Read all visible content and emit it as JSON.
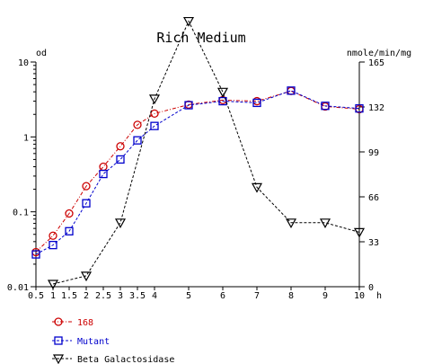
{
  "chart_data": {
    "type": "line",
    "title": "Rich Medium",
    "x_unit": "h",
    "y_left_unit": "od",
    "y_right_unit": "nmole/min/mg",
    "x_tick_labels": [
      "0.5",
      "1",
      "1.5",
      "2",
      "2.5",
      "3",
      "3.5",
      "4",
      "5",
      "6",
      "7",
      "8",
      "9",
      "10"
    ],
    "y_left_scale": "log",
    "y_left_range": [
      0.01,
      10
    ],
    "y_left_ticks": [
      "0.01",
      "0.1",
      "1",
      "10"
    ],
    "y_right_range": [
      0,
      165
    ],
    "y_right_ticks": [
      "0",
      "33",
      "66",
      "99",
      "132",
      "165"
    ],
    "grid": false,
    "legend_position": "bottom-left",
    "series": [
      {
        "name": "168",
        "color": "#cc0000",
        "marker": "circle",
        "axis": "left",
        "line": "dash-dot",
        "points": [
          [
            0.5,
            0.029
          ],
          [
            1,
            0.048
          ],
          [
            1.5,
            0.095
          ],
          [
            2,
            0.22
          ],
          [
            2.5,
            0.4
          ],
          [
            3,
            0.75
          ],
          [
            3.5,
            1.45
          ],
          [
            4,
            2.05
          ],
          [
            5,
            2.7
          ],
          [
            6,
            3.1
          ],
          [
            7,
            3.0
          ],
          [
            8,
            4.1
          ],
          [
            9,
            2.55
          ],
          [
            10,
            2.35
          ]
        ]
      },
      {
        "name": "Mutant",
        "color": "#0000cc",
        "marker": "square",
        "axis": "left",
        "line": "dash",
        "points": [
          [
            0.5,
            0.027
          ],
          [
            1,
            0.036
          ],
          [
            1.5,
            0.055
          ],
          [
            2,
            0.13
          ],
          [
            2.5,
            0.32
          ],
          [
            3,
            0.5
          ],
          [
            3.5,
            0.9
          ],
          [
            4,
            1.4
          ],
          [
            5,
            2.65
          ],
          [
            6,
            3.0
          ],
          [
            7,
            2.85
          ],
          [
            8,
            4.15
          ],
          [
            9,
            2.6
          ],
          [
            10,
            2.4
          ]
        ]
      },
      {
        "name": "Beta Galactosidase",
        "color": "#000000",
        "marker": "triangle-down",
        "axis": "right",
        "line": "dash",
        "points": [
          [
            1,
            2
          ],
          [
            2,
            8
          ],
          [
            3,
            47
          ],
          [
            4,
            138
          ],
          [
            5,
            195
          ],
          [
            6,
            143
          ],
          [
            7,
            73
          ],
          [
            8,
            47
          ],
          [
            9,
            47
          ],
          [
            10,
            40
          ]
        ]
      }
    ]
  }
}
